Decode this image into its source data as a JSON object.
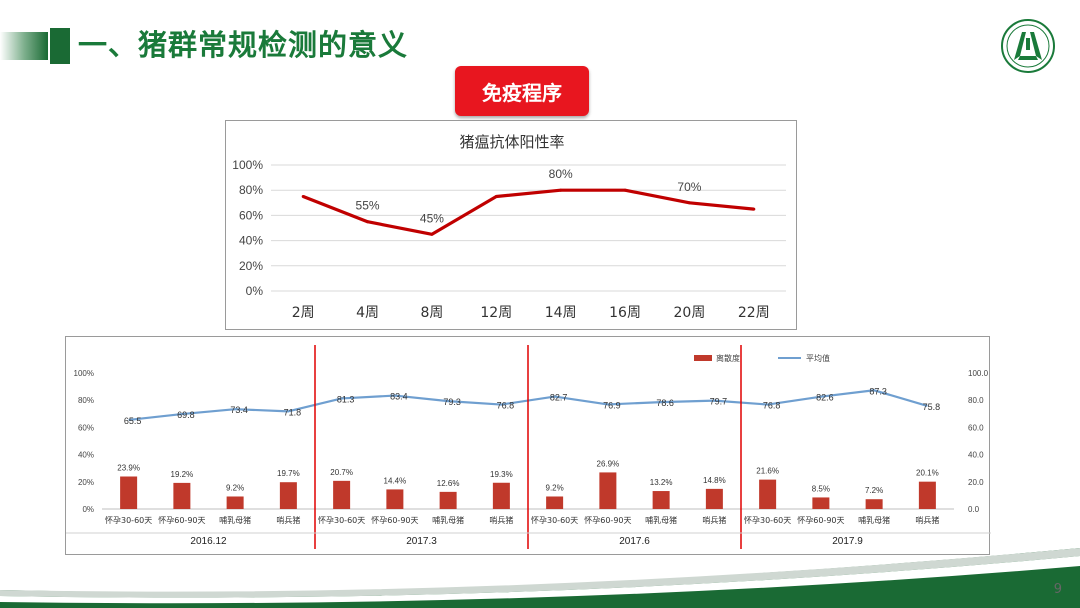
{
  "slide": {
    "title": "一、猪群常规检测的意义",
    "badge": "免疫程序",
    "page_number": "9",
    "colors": {
      "title_green": "#1a7a3a",
      "badge_red": "#e8161f",
      "line_red": "#c00000",
      "bar_red": "#c0392b",
      "line_blue": "#6f9fd0"
    }
  },
  "chart_data": [
    {
      "type": "line",
      "title": "猪瘟抗体阳性率",
      "categories": [
        "2周",
        "4周",
        "8周",
        "12周",
        "14周",
        "16周",
        "20周",
        "22周"
      ],
      "values": [
        75,
        55,
        45,
        75,
        80,
        80,
        70,
        65
      ],
      "data_labels": [
        "",
        "55%",
        "45%",
        "",
        "80%",
        "",
        "70%",
        ""
      ],
      "ylim": [
        0,
        100
      ],
      "yticks": [
        "0%",
        "20%",
        "40%",
        "60%",
        "80%",
        "100%"
      ],
      "grid": true,
      "color": "#c00000"
    },
    {
      "type": "bar+line",
      "legend": [
        "离散度",
        "平均值"
      ],
      "legend_position": "top-right",
      "categories": [
        "怀孕30-60天",
        "怀孕60-90天",
        "哺乳母猪",
        "哨兵猪",
        "怀孕30-60天",
        "怀孕60-90天",
        "哺乳母猪",
        "哨兵猪",
        "怀孕30-60天",
        "怀孕60-90天",
        "哺乳母猪",
        "哨兵猪",
        "怀孕30-60天",
        "怀孕60-90天",
        "哺乳母猪",
        "哨兵猪"
      ],
      "groups": [
        "2016.12",
        "2017.3",
        "2017.6",
        "2017.9"
      ],
      "series": [
        {
          "name": "离散度",
          "type": "bar",
          "axis": "left",
          "values": [
            23.9,
            19.2,
            9.2,
            19.7,
            20.7,
            14.4,
            12.6,
            19.3,
            9.2,
            26.9,
            13.2,
            14.8,
            21.6,
            8.5,
            7.2,
            20.1
          ],
          "labels": [
            "23.9%",
            "19.2%",
            "9.2%",
            "19.7%",
            "20.7%",
            "14.4%",
            "12.6%",
            "19.3%",
            "9.2%",
            "26.9%",
            "13.2%",
            "14.8%",
            "21.6%",
            "8.5%",
            "7.2%",
            "20.1%"
          ]
        },
        {
          "name": "平均值",
          "type": "line",
          "axis": "right",
          "values": [
            65.5,
            69.8,
            73.4,
            71.8,
            81.3,
            83.4,
            79.3,
            76.8,
            82.7,
            76.9,
            78.6,
            79.7,
            76.8,
            82.6,
            87.3,
            75.8
          ],
          "labels": [
            "65.5",
            "69.8",
            "73.4",
            "71.8",
            "81.3",
            "83.4",
            "79.3",
            "76.8",
            "82.7",
            "76.9",
            "78.6",
            "79.7",
            "76.8",
            "82.6",
            "87.3",
            "75.8"
          ]
        }
      ],
      "y_left_ticks": [
        "0%",
        "20%",
        "40%",
        "60%",
        "80%",
        "100%"
      ],
      "y_right_ticks": [
        "0.0",
        "20.0",
        "40.0",
        "60.0",
        "80.0",
        "100.0"
      ],
      "ylim": [
        0,
        100
      ],
      "grid": false
    }
  ]
}
